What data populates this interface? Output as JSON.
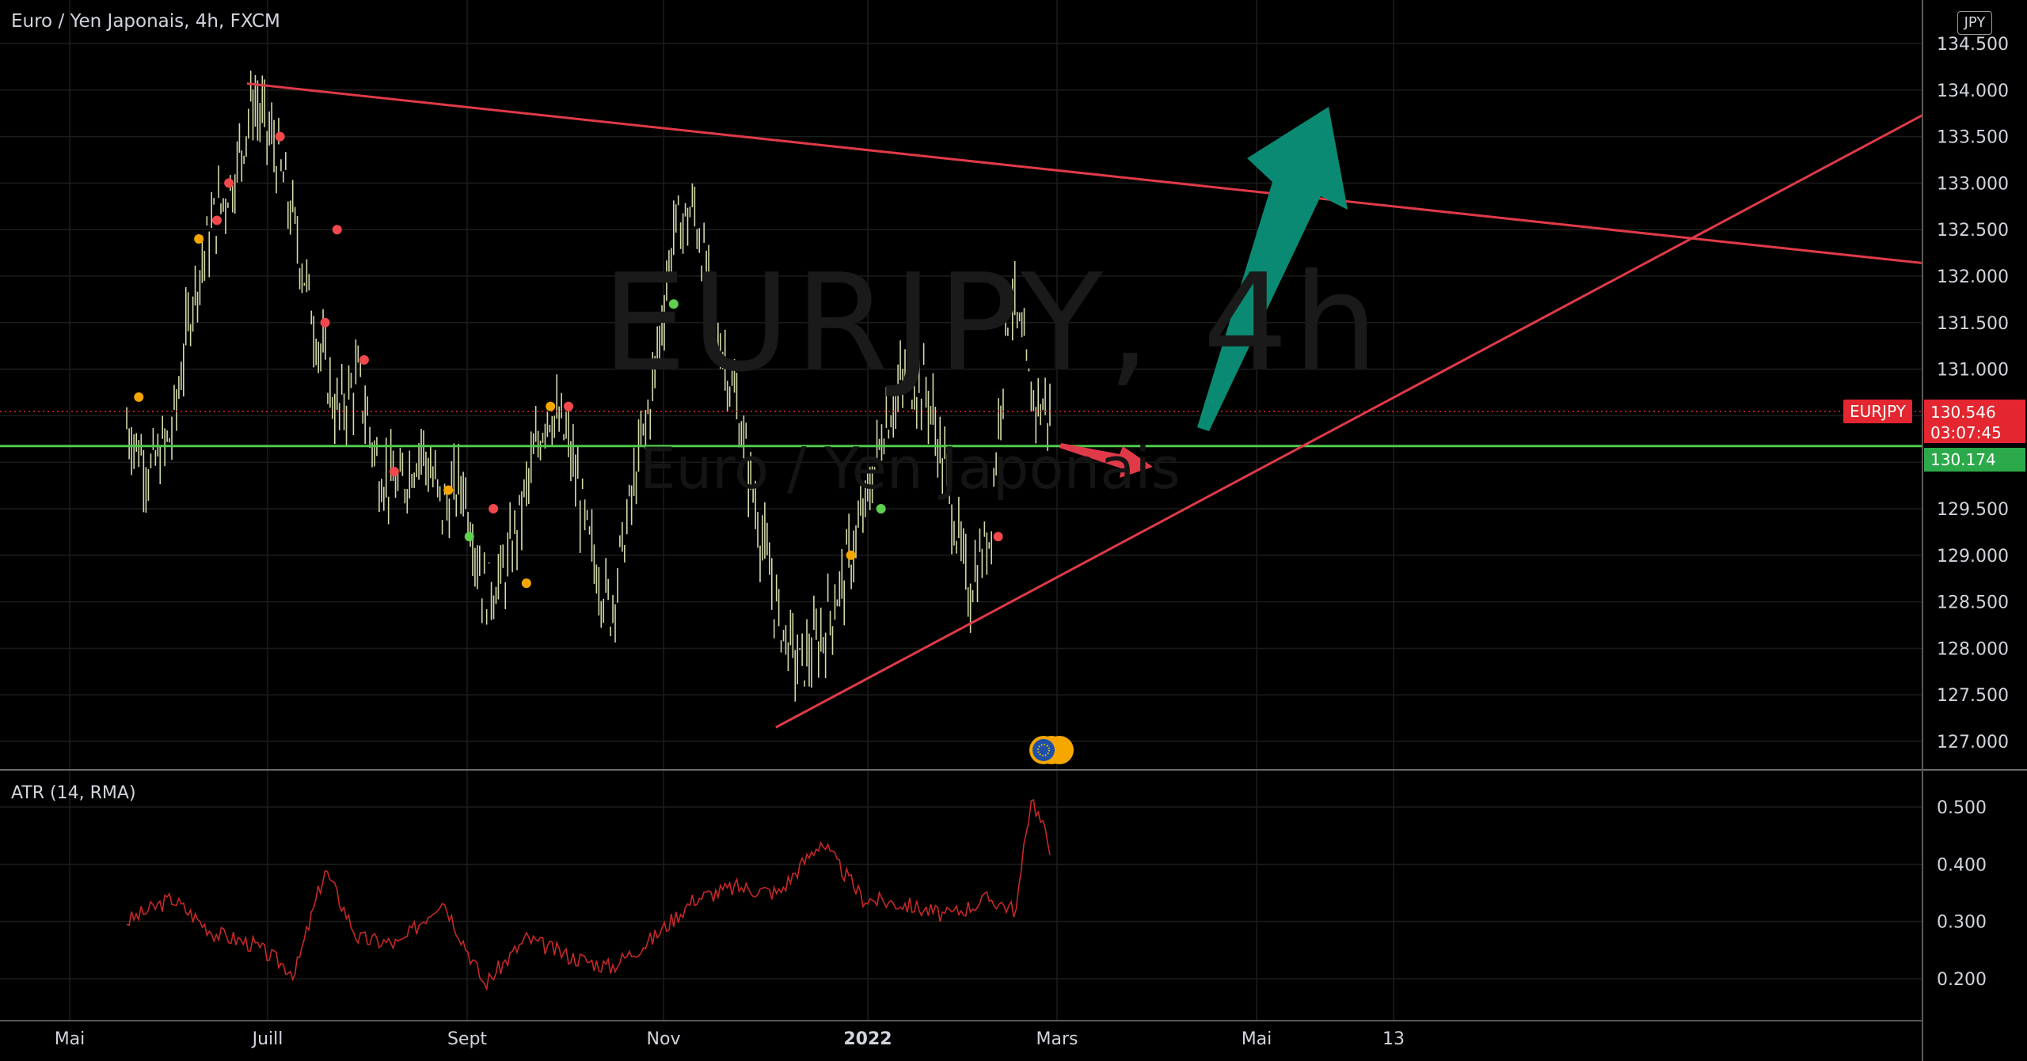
{
  "header": {
    "symbol_title": "Euro / Yen Japonais, 4h, FXCM",
    "currency_button": "JPY"
  },
  "watermark": {
    "ticker": "EURJPY, 4h",
    "name": "Euro / Yen Japonais"
  },
  "price_badges": {
    "symbol": "EURJPY",
    "last_price": "130.546",
    "countdown": "03:07:45",
    "level": "130.174"
  },
  "colors": {
    "background": "#000000",
    "grid": "#1c1c1c",
    "candle": "#d4d9a8",
    "trendline": "#e03a48",
    "support": "#4fc94c",
    "up_arrow": "#0b8a73",
    "down_arrow": "#e03a48",
    "atr_line": "#c62828",
    "axis_text": "#d1d4dc",
    "dot_red": "#f0484c",
    "dot_orange": "#f5a700",
    "dot_green": "#5fd04f"
  },
  "icons": {
    "event_marker": "eu-flag-icon"
  },
  "chart_data": {
    "type": "line",
    "title": "Euro / Yen Japonais, 4h, FXCM",
    "x_tick_labels": [
      "Mai",
      "Juill",
      "Sept",
      "Nov",
      "2022",
      "Mars",
      "Mai",
      "13"
    ],
    "y_ticks": [
      "134.500",
      "134.000",
      "133.500",
      "133.000",
      "132.500",
      "132.000",
      "131.500",
      "131.000",
      "130.500",
      "130.000",
      "129.500",
      "129.000",
      "128.500",
      "128.000",
      "127.500",
      "127.000"
    ],
    "ylim": [
      126.85,
      134.55
    ],
    "grid": true,
    "series": [
      {
        "name": "EURJPY",
        "x": [
          "2021-04-20",
          "2021-04-28",
          "2021-05-05",
          "2021-05-12",
          "2021-05-19",
          "2021-05-26",
          "2021-06-01",
          "2021-06-08",
          "2021-06-15",
          "2021-06-22",
          "2021-06-29",
          "2021-07-06",
          "2021-07-13",
          "2021-07-20",
          "2021-07-27",
          "2021-08-03",
          "2021-08-10",
          "2021-08-17",
          "2021-08-24",
          "2021-08-31",
          "2021-09-07",
          "2021-09-14",
          "2021-09-21",
          "2021-09-28",
          "2021-10-05",
          "2021-10-12",
          "2021-10-19",
          "2021-10-26",
          "2021-11-02",
          "2021-11-09",
          "2021-11-16",
          "2021-11-23",
          "2021-11-30",
          "2021-12-07",
          "2021-12-14",
          "2021-12-21",
          "2021-12-28",
          "2022-01-04",
          "2022-01-11",
          "2022-01-18",
          "2022-01-25",
          "2022-02-01",
          "2022-02-08",
          "2022-02-15",
          "2022-02-22"
        ],
        "values": [
          130.4,
          129.9,
          130.3,
          131.8,
          132.6,
          133.1,
          133.9,
          133.4,
          132.5,
          131.4,
          130.5,
          130.9,
          129.9,
          129.7,
          130.2,
          129.5,
          129.8,
          128.6,
          128.8,
          129.7,
          130.6,
          130.2,
          129.1,
          128.4,
          129.6,
          130.8,
          132.5,
          132.7,
          131.5,
          130.6,
          129.4,
          128.3,
          127.8,
          128.1,
          128.7,
          129.4,
          130.4,
          130.9,
          130.8,
          129.8,
          128.6,
          129.2,
          131.9,
          130.7,
          130.5
        ]
      },
      {
        "name": "ATR (14, RMA)",
        "x": [
          "2021-04-20",
          "2021-05-05",
          "2021-05-19",
          "2021-06-01",
          "2021-06-15",
          "2021-06-25",
          "2021-07-06",
          "2021-07-20",
          "2021-08-03",
          "2021-08-17",
          "2021-08-31",
          "2021-09-14",
          "2021-09-28",
          "2021-10-12",
          "2021-10-26",
          "2021-11-09",
          "2021-11-23",
          "2021-12-07",
          "2021-12-21",
          "2022-01-04",
          "2022-01-18",
          "2022-02-01",
          "2022-02-10",
          "2022-02-15",
          "2022-02-22"
        ],
        "values": [
          0.3,
          0.34,
          0.28,
          0.26,
          0.21,
          0.39,
          0.27,
          0.26,
          0.34,
          0.19,
          0.27,
          0.24,
          0.22,
          0.27,
          0.34,
          0.36,
          0.35,
          0.44,
          0.34,
          0.33,
          0.31,
          0.34,
          0.32,
          0.52,
          0.42
        ]
      }
    ],
    "atr_panel": {
      "title": "ATR (14, RMA)",
      "y_ticks": [
        "0.500",
        "0.400",
        "0.300",
        "0.200"
      ],
      "ylim": [
        0.14,
        0.56
      ]
    },
    "horizontal_level": 130.174,
    "current_price": 130.546,
    "trendlines": [
      {
        "name": "resistance",
        "from": [
          "2021-05-30",
          134.07
        ],
        "to": [
          "2022-06-20",
          132.14
        ]
      },
      {
        "name": "support",
        "from": [
          "2021-11-22",
          127.15
        ],
        "to": [
          "2022-06-20",
          133.73
        ]
      }
    ],
    "annotations": [
      {
        "type": "arrow",
        "direction": "up",
        "from": [
          "2022-03-29",
          130.3
        ],
        "to": [
          "2022-04-26",
          133.9
        ]
      },
      {
        "type": "arrow",
        "direction": "right-down",
        "from": [
          "2022-03-01",
          130.15
        ],
        "to": [
          "2022-03-20",
          129.85
        ]
      }
    ]
  }
}
